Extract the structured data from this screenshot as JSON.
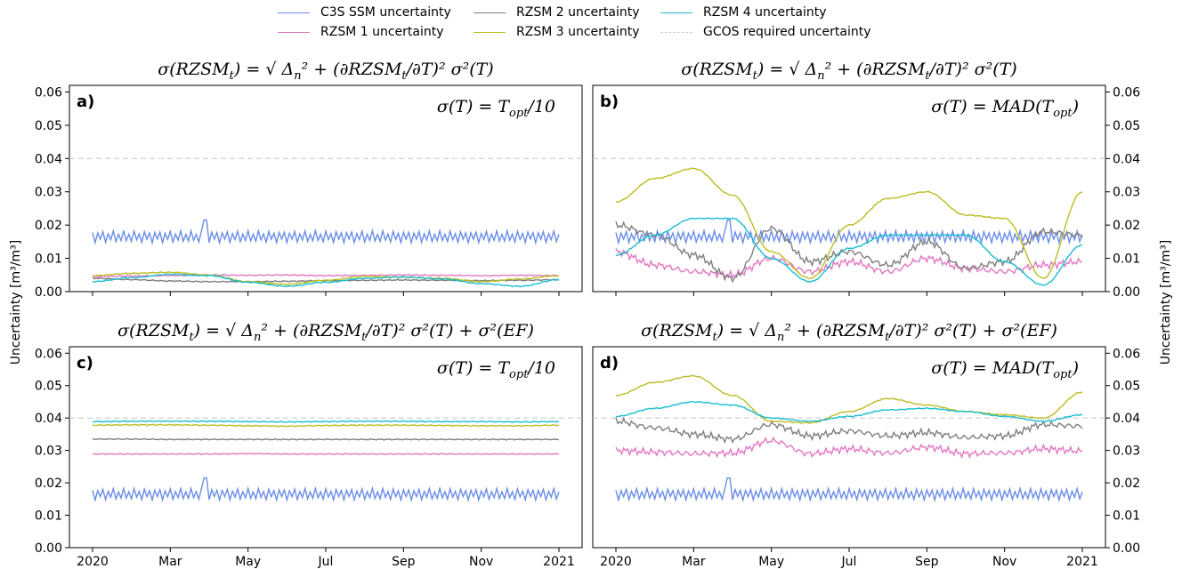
{
  "legend": {
    "items": [
      {
        "label": "C3S SSM uncertainty",
        "color": "#6a8de8",
        "dashed": false
      },
      {
        "label": "RZSM 1 uncertainty",
        "color": "#e377c2",
        "dashed": false
      },
      {
        "label": "RZSM 2 uncertainty",
        "color": "#7f7f7f",
        "dashed": false
      },
      {
        "label": "RZSM 3 uncertainty",
        "color": "#bcbd22",
        "dashed": false
      },
      {
        "label": "RZSM 4 uncertainty",
        "color": "#17becf",
        "dashed": false
      },
      {
        "label": "GCOS required uncertainty",
        "color": "#cccccc",
        "dashed": true
      }
    ]
  },
  "ylabel": "Uncertainty [m³/m³]",
  "chart_data": [
    {
      "type": "line",
      "panel_label": "a)",
      "formula": "σ(RZSM_t) = √(Δn² + (∂RZSM_t/∂T)² σ²(T))",
      "sigma_label": "σ(T) = T_opt/10",
      "ylim": [
        0,
        0.062
      ],
      "yticks": [
        "0.00",
        "0.01",
        "0.02",
        "0.03",
        "0.04",
        "0.05",
        "0.06"
      ],
      "xticks": [
        "2020",
        "Mar",
        "May",
        "Jul",
        "Sep",
        "Nov",
        "2021"
      ],
      "gcos_threshold": 0.04,
      "series": [
        {
          "name": "C3S SSM uncertainty",
          "color": "#6a8de8",
          "noisy": true,
          "values": [
            0.0165,
            0.0165,
            0.0165,
            0.0165,
            0.0165,
            0.0165,
            0.0165,
            0.0165,
            0.0165,
            0.0165,
            0.0165,
            0.0165,
            0.0165
          ]
        },
        {
          "name": "RZSM 1 uncertainty",
          "color": "#e377c2",
          "values": [
            0.0045,
            0.0047,
            0.0048,
            0.005,
            0.0049,
            0.005,
            0.0048,
            0.0049,
            0.005,
            0.0049,
            0.0048,
            0.0049,
            0.0048
          ]
        },
        {
          "name": "RZSM 2 uncertainty",
          "color": "#7f7f7f",
          "values": [
            0.004,
            0.0036,
            0.0032,
            0.003,
            0.003,
            0.0031,
            0.0033,
            0.0034,
            0.0035,
            0.0034,
            0.0033,
            0.0034,
            0.0036
          ]
        },
        {
          "name": "RZSM 3 uncertainty",
          "color": "#bcbd22",
          "values": [
            0.0048,
            0.0055,
            0.0058,
            0.005,
            0.003,
            0.0022,
            0.0034,
            0.0046,
            0.0043,
            0.004,
            0.003,
            0.0038,
            0.0048
          ]
        },
        {
          "name": "RZSM 4 uncertainty",
          "color": "#17becf",
          "values": [
            0.003,
            0.0042,
            0.0052,
            0.0048,
            0.0028,
            0.0016,
            0.0028,
            0.004,
            0.0044,
            0.0038,
            0.0024,
            0.0016,
            0.0036
          ]
        }
      ]
    },
    {
      "type": "line",
      "panel_label": "b)",
      "formula": "σ(RZSM_t) = √(Δn² + (∂RZSM_t/∂T)² σ²(T))",
      "sigma_label": "σ(T) = MAD(T_opt)",
      "ylim": [
        0,
        0.062
      ],
      "yticks": [
        "0.00",
        "0.01",
        "0.02",
        "0.03",
        "0.04",
        "0.05",
        "0.06"
      ],
      "xticks": [
        "2020",
        "Mar",
        "May",
        "Jul",
        "Sep",
        "Nov",
        "2021"
      ],
      "gcos_threshold": 0.04,
      "series": [
        {
          "name": "C3S SSM uncertainty",
          "color": "#6a8de8",
          "noisy": true,
          "values": [
            0.0165,
            0.0165,
            0.0165,
            0.0165,
            0.0165,
            0.0165,
            0.0165,
            0.0165,
            0.0165,
            0.0165,
            0.0165,
            0.0165,
            0.0165
          ]
        },
        {
          "name": "RZSM 1 uncertainty",
          "color": "#e377c2",
          "values": [
            0.012,
            0.008,
            0.006,
            0.005,
            0.01,
            0.006,
            0.009,
            0.006,
            0.01,
            0.007,
            0.006,
            0.008,
            0.009
          ]
        },
        {
          "name": "RZSM 2 uncertainty",
          "color": "#7f7f7f",
          "values": [
            0.02,
            0.017,
            0.011,
            0.004,
            0.019,
            0.009,
            0.012,
            0.008,
            0.015,
            0.007,
            0.009,
            0.018,
            0.017
          ]
        },
        {
          "name": "RZSM 3 uncertainty",
          "color": "#bcbd22",
          "values": [
            0.027,
            0.034,
            0.037,
            0.029,
            0.012,
            0.004,
            0.02,
            0.028,
            0.03,
            0.023,
            0.022,
            0.004,
            0.03
          ]
        },
        {
          "name": "RZSM 4 uncertainty",
          "color": "#17becf",
          "values": [
            0.011,
            0.017,
            0.022,
            0.022,
            0.01,
            0.003,
            0.013,
            0.017,
            0.017,
            0.017,
            0.009,
            0.002,
            0.014
          ]
        }
      ]
    },
    {
      "type": "line",
      "panel_label": "c)",
      "formula": "σ(RZSM_t) = √(Δn² + (∂RZSM_t/∂T)² σ²(T) + σ²(EF))",
      "sigma_label": "σ(T) = T_opt/10",
      "ylim": [
        0,
        0.062
      ],
      "yticks": [
        "0.00",
        "0.01",
        "0.02",
        "0.03",
        "0.04",
        "0.05",
        "0.06"
      ],
      "xticks": [
        "2020",
        "Mar",
        "May",
        "Jul",
        "Sep",
        "Nov",
        "2021"
      ],
      "gcos_threshold": 0.04,
      "series": [
        {
          "name": "C3S SSM uncertainty",
          "color": "#6a8de8",
          "noisy": true,
          "values": [
            0.0165,
            0.0165,
            0.0165,
            0.0165,
            0.0165,
            0.0165,
            0.0165,
            0.0165,
            0.0165,
            0.0165,
            0.0165,
            0.0165,
            0.0165
          ]
        },
        {
          "name": "RZSM 1 uncertainty",
          "color": "#e377c2",
          "values": [
            0.0289,
            0.0289,
            0.0289,
            0.0289,
            0.029,
            0.0289,
            0.0289,
            0.0289,
            0.0289,
            0.0289,
            0.0289,
            0.0289,
            0.0289
          ]
        },
        {
          "name": "RZSM 2 uncertainty",
          "color": "#7f7f7f",
          "values": [
            0.0335,
            0.0335,
            0.0334,
            0.0334,
            0.0334,
            0.0334,
            0.0334,
            0.0334,
            0.0334,
            0.0334,
            0.0334,
            0.0334,
            0.0334
          ]
        },
        {
          "name": "RZSM 3 uncertainty",
          "color": "#bcbd22",
          "values": [
            0.0378,
            0.0379,
            0.0379,
            0.0378,
            0.0376,
            0.0375,
            0.0377,
            0.0378,
            0.0378,
            0.0377,
            0.0376,
            0.0376,
            0.0378
          ]
        },
        {
          "name": "RZSM 4 uncertainty",
          "color": "#17becf",
          "values": [
            0.0389,
            0.039,
            0.039,
            0.039,
            0.0389,
            0.0388,
            0.0389,
            0.039,
            0.039,
            0.0389,
            0.0389,
            0.0388,
            0.0389
          ]
        }
      ]
    },
    {
      "type": "line",
      "panel_label": "d)",
      "formula": "σ(RZSM_t) = √(Δn² + (∂RZSM_t/∂T)² σ²(T) + σ²(EF))",
      "sigma_label": "σ(T) = MAD(T_opt)",
      "ylim": [
        0,
        0.062
      ],
      "yticks": [
        "0.00",
        "0.01",
        "0.02",
        "0.03",
        "0.04",
        "0.05",
        "0.06"
      ],
      "xticks": [
        "2020",
        "Mar",
        "May",
        "Jul",
        "Sep",
        "Nov",
        "2021"
      ],
      "gcos_threshold": 0.04,
      "series": [
        {
          "name": "C3S SSM uncertainty",
          "color": "#6a8de8",
          "noisy": true,
          "values": [
            0.0165,
            0.0165,
            0.0165,
            0.0165,
            0.0165,
            0.0165,
            0.0165,
            0.0165,
            0.0165,
            0.0165,
            0.0165,
            0.0165,
            0.0165
          ]
        },
        {
          "name": "RZSM 1 uncertainty",
          "color": "#e377c2",
          "values": [
            0.03,
            0.0295,
            0.029,
            0.0292,
            0.033,
            0.029,
            0.0305,
            0.0292,
            0.031,
            0.029,
            0.0292,
            0.0305,
            0.0298
          ]
        },
        {
          "name": "RZSM 2 uncertainty",
          "color": "#7f7f7f",
          "values": [
            0.039,
            0.037,
            0.035,
            0.0335,
            0.038,
            0.0345,
            0.036,
            0.0345,
            0.0355,
            0.034,
            0.0345,
            0.038,
            0.0375
          ]
        },
        {
          "name": "RZSM 3 uncertainty",
          "color": "#bcbd22",
          "values": [
            0.047,
            0.051,
            0.053,
            0.047,
            0.039,
            0.0385,
            0.042,
            0.046,
            0.044,
            0.042,
            0.041,
            0.04,
            0.048
          ]
        },
        {
          "name": "RZSM 4 uncertainty",
          "color": "#17becf",
          "values": [
            0.0405,
            0.043,
            0.045,
            0.044,
            0.04,
            0.039,
            0.0405,
            0.0425,
            0.043,
            0.042,
            0.0405,
            0.039,
            0.041
          ]
        }
      ]
    }
  ]
}
